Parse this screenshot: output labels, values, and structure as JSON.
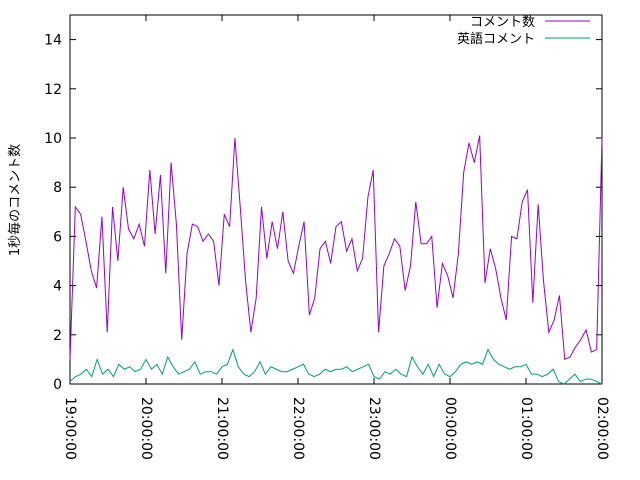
{
  "chart_data": {
    "type": "line",
    "title": "",
    "xlabel": "",
    "ylabel": "1秒毎のコメント数",
    "ylim": [
      0,
      15
    ],
    "y_ticks": [
      "0",
      "2",
      "4",
      "6",
      "8",
      "10",
      "12",
      "14"
    ],
    "x_range": [
      "19:00:00",
      "02:00:00"
    ],
    "x_ticks": [
      "19:00:00",
      "20:00:00",
      "21:00:00",
      "22:00:00",
      "23:00:00",
      "00:00:00",
      "01:00:00",
      "02:00:00"
    ],
    "grid": false,
    "legend_position": "top-right",
    "series": [
      {
        "name": "コメント数",
        "color": "#9400d3",
        "values": [
          1.0,
          7.2,
          6.9,
          5.8,
          4.6,
          3.9,
          6.8,
          2.1,
          7.2,
          5.0,
          8.0,
          6.3,
          5.9,
          6.5,
          5.6,
          8.7,
          6.1,
          8.5,
          4.5,
          9.0,
          6.5,
          1.8,
          5.3,
          6.5,
          6.4,
          5.8,
          6.1,
          5.8,
          4.0,
          6.9,
          6.4,
          10.0,
          7.2,
          4.2,
          2.1,
          3.5,
          7.2,
          5.1,
          6.6,
          5.5,
          7.0,
          5.0,
          4.5,
          5.6,
          6.6,
          2.8,
          3.5,
          5.5,
          5.8,
          4.9,
          6.4,
          6.6,
          5.4,
          5.9,
          4.6,
          5.1,
          7.6,
          8.7,
          2.1,
          4.8,
          5.3,
          5.9,
          5.6,
          3.8,
          4.8,
          7.4,
          5.7,
          5.7,
          6.0,
          3.1,
          4.9,
          4.4,
          3.5,
          5.3,
          8.6,
          9.8,
          9.0,
          10.1,
          4.1,
          5.5,
          4.7,
          3.5,
          2.6,
          6.0,
          5.9,
          7.4,
          7.9,
          3.3,
          7.3,
          4.2,
          2.1,
          2.6,
          3.6,
          1.0,
          1.1,
          1.5,
          1.8,
          2.2,
          1.3,
          1.4,
          10.0
        ]
      },
      {
        "name": "英語コメント",
        "color": "#009e73",
        "values": [
          0.1,
          0.3,
          0.4,
          0.6,
          0.3,
          1.0,
          0.4,
          0.6,
          0.3,
          0.8,
          0.6,
          0.7,
          0.5,
          0.6,
          1.0,
          0.6,
          0.8,
          0.4,
          1.1,
          0.7,
          0.4,
          0.5,
          0.6,
          0.9,
          0.4,
          0.5,
          0.5,
          0.4,
          0.7,
          0.8,
          1.4,
          0.7,
          0.4,
          0.3,
          0.5,
          0.9,
          0.4,
          0.7,
          0.6,
          0.5,
          0.5,
          0.6,
          0.7,
          0.8,
          0.4,
          0.3,
          0.4,
          0.6,
          0.5,
          0.6,
          0.6,
          0.7,
          0.5,
          0.6,
          0.7,
          0.8,
          0.3,
          0.2,
          0.5,
          0.4,
          0.6,
          0.4,
          0.3,
          1.1,
          0.7,
          0.4,
          0.8,
          0.3,
          0.8,
          0.4,
          0.3,
          0.5,
          0.8,
          0.9,
          0.8,
          0.9,
          0.8,
          1.4,
          1.0,
          0.8,
          0.7,
          0.6,
          0.7,
          0.7,
          0.8,
          0.4,
          0.4,
          0.3,
          0.4,
          0.6,
          0.1,
          0.0,
          0.2,
          0.4,
          0.1,
          0.2,
          0.2,
          0.1,
          0.0
        ]
      }
    ]
  }
}
